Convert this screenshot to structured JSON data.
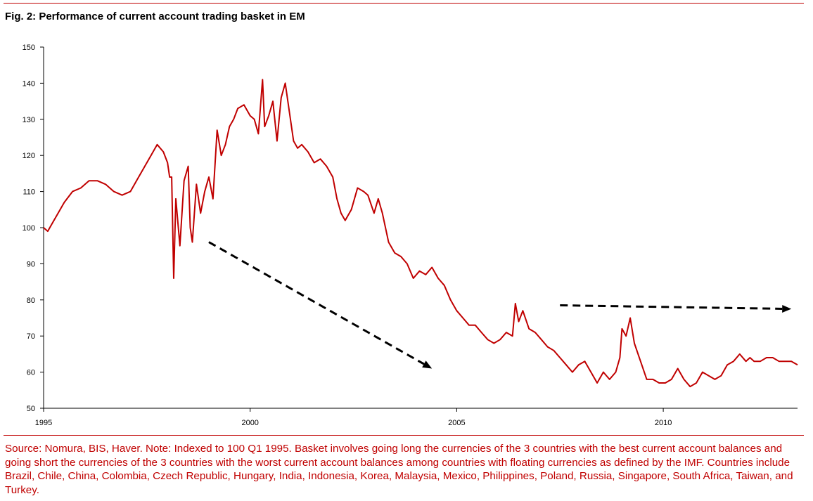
{
  "title": "Fig. 2: Performance of current account trading basket in EM",
  "source_note": "Source: Nomura, BIS, Haver. Note: Indexed to 100 Q1 1995. Basket involves going long the currencies of the 3 countries with the best current account balances and going short the currencies of the 3 countries with the worst current account balances among countries with floating currencies as defined by the IMF. Countries include Brazil, Chile, China, Colombia, Czech Republic, Hungary, India, Indonesia, Korea, Malaysia, Mexico, Philippines, Poland, Russia, Singapore, South Africa, Taiwan, and Turkey.",
  "colors": {
    "line": "#c00000",
    "rule": "#c00000",
    "source_text": "#c00000",
    "arrows": "#000000"
  },
  "chart_data": {
    "type": "line",
    "title": "Fig. 2: Performance of current account trading basket in EM",
    "xlabel": "",
    "ylabel": "",
    "xlim": [
      1995.0,
      2013.25
    ],
    "ylim": [
      50,
      150
    ],
    "x_ticks": [
      1995,
      2000,
      2005,
      2010
    ],
    "x_tick_labels": [
      "1995",
      "2000",
      "2005",
      "2010"
    ],
    "y_ticks": [
      50,
      60,
      70,
      80,
      90,
      100,
      110,
      120,
      130,
      140,
      150
    ],
    "y_tick_labels": [
      "50",
      "60",
      "70",
      "80",
      "90",
      "100",
      "110",
      "120",
      "130",
      "140",
      "150"
    ],
    "grid": false,
    "legend": "none",
    "series": [
      {
        "x": [
          1995.0,
          1995.1,
          1995.2,
          1995.35,
          1995.5,
          1995.7,
          1995.9,
          1996.1,
          1996.3,
          1996.5,
          1996.7,
          1996.9,
          1997.1,
          1997.3,
          1997.45,
          1997.6,
          1997.75,
          1997.9,
          1998.0,
          1998.05,
          1998.1,
          1998.15,
          1998.2,
          1998.3,
          1998.4,
          1998.5,
          1998.55,
          1998.6,
          1998.7,
          1998.8,
          1998.9,
          1998.95,
          1999.0,
          1999.1,
          1999.2,
          1999.3,
          1999.4,
          1999.5,
          1999.6,
          1999.7,
          1999.85,
          2000.0,
          2000.1,
          2000.2,
          2000.3,
          2000.35,
          2000.45,
          2000.55,
          2000.65,
          2000.75,
          2000.85,
          2000.95,
          2001.05,
          2001.15,
          2001.25,
          2001.4,
          2001.55,
          2001.7,
          2001.85,
          2002.0,
          2002.1,
          2002.2,
          2002.3,
          2002.45,
          2002.6,
          2002.75,
          2002.85,
          2003.0,
          2003.1,
          2003.2,
          2003.35,
          2003.5,
          2003.65,
          2003.8,
          2003.95,
          2004.1,
          2004.25,
          2004.4,
          2004.55,
          2004.7,
          2004.85,
          2005.0,
          2005.15,
          2005.3,
          2005.45,
          2005.6,
          2005.75,
          2005.9,
          2006.05,
          2006.2,
          2006.35,
          2006.42,
          2006.5,
          2006.6,
          2006.75,
          2006.9,
          2007.05,
          2007.2,
          2007.35,
          2007.5,
          2007.65,
          2007.8,
          2007.95,
          2008.1,
          2008.25,
          2008.4,
          2008.55,
          2008.7,
          2008.85,
          2008.95,
          2009.0,
          2009.1,
          2009.2,
          2009.3,
          2009.45,
          2009.6,
          2009.75,
          2009.9,
          2010.05,
          2010.2,
          2010.35,
          2010.5,
          2010.65,
          2010.8,
          2010.95,
          2011.1,
          2011.25,
          2011.4,
          2011.55,
          2011.7,
          2011.85,
          2012.0,
          2012.1,
          2012.2,
          2012.35,
          2012.5,
          2012.65,
          2012.8,
          2012.95,
          2013.1,
          2013.25
        ],
        "values": [
          100,
          99,
          101,
          104,
          107,
          110,
          111,
          113,
          113,
          112,
          110,
          109,
          110,
          114,
          117,
          120,
          123,
          121,
          118,
          114,
          114,
          86,
          108,
          95,
          113,
          117,
          100,
          96,
          112,
          104,
          110,
          112,
          114,
          108,
          127,
          120,
          123,
          128,
          130,
          133,
          134,
          131,
          130,
          126,
          141,
          128,
          131,
          135,
          124,
          136,
          140,
          132,
          124,
          122,
          123,
          121,
          118,
          119,
          117,
          114,
          108,
          104,
          102,
          105,
          111,
          110,
          109,
          104,
          108,
          104,
          96,
          93,
          92,
          90,
          86,
          88,
          87,
          89,
          86,
          84,
          80,
          77,
          75,
          73,
          73,
          71,
          69,
          68,
          69,
          71,
          70,
          79,
          74,
          77,
          72,
          71,
          69,
          67,
          66,
          64,
          62,
          60,
          62,
          63,
          60,
          57,
          60,
          58,
          60,
          64,
          72,
          70,
          75,
          68,
          63,
          58,
          58,
          57,
          57,
          58,
          61,
          58,
          56,
          57,
          60,
          59,
          58,
          59,
          62,
          63,
          65,
          63,
          64,
          63,
          63,
          64,
          64,
          63,
          63,
          63,
          62
        ]
      }
    ],
    "annotations": [
      {
        "type": "dashed-arrow",
        "meaning": "downtrend",
        "from": [
          1999.0,
          96
        ],
        "to": [
          2004.4,
          61
        ]
      },
      {
        "type": "dashed-arrow",
        "meaning": "flat",
        "from": [
          2007.5,
          78.5
        ],
        "to": [
          2013.1,
          77.5
        ]
      }
    ]
  }
}
